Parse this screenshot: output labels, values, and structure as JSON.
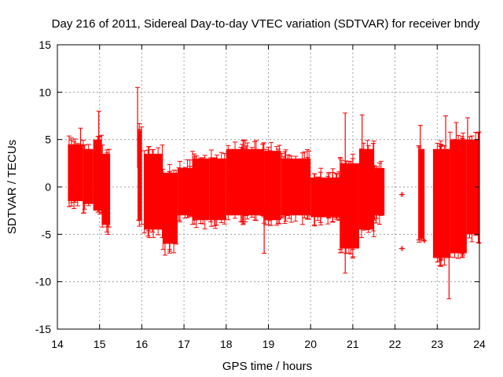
{
  "chart_data": {
    "type": "scatter",
    "title": "Day 216 of 2011, Sidereal Day-to-day VTEC variation (SDTVAR) for receiver bndy",
    "xlabel": "GPS time / hours",
    "ylabel": "SDTVAR / TECUs",
    "xlim": [
      14,
      24
    ],
    "ylim": [
      -15,
      15
    ],
    "xticks": [
      "14",
      "15",
      "16",
      "17",
      "18",
      "19",
      "20",
      "21",
      "22",
      "23",
      "24"
    ],
    "yticks": [
      "-15",
      "-10",
      "-5",
      "0",
      "5",
      "10",
      "15"
    ],
    "grid": true,
    "series_color": "#ff0000",
    "series": [
      {
        "name": "SDTVAR",
        "bands": [
          {
            "x": [
              14.25,
              14.6
            ],
            "low": -1.5,
            "high": 4.5
          },
          {
            "x": [
              14.6,
              14.85
            ],
            "low": -1.8,
            "high": 4.0
          },
          {
            "x": [
              14.85,
              15.05
            ],
            "low": -2.5,
            "high": 5.0
          },
          {
            "x": [
              15.05,
              15.25
            ],
            "low": -4.0,
            "high": 3.5
          },
          {
            "x": [
              15.9,
              16.0
            ],
            "low": -3.5,
            "high": 6.0
          },
          {
            "x": [
              16.05,
              16.5
            ],
            "low": -4.5,
            "high": 3.5
          },
          {
            "x": [
              16.5,
              16.85
            ],
            "low": -6.0,
            "high": 1.5
          },
          {
            "x": [
              16.85,
              17.2
            ],
            "low": -3.0,
            "high": 2.0
          },
          {
            "x": [
              17.2,
              17.6
            ],
            "low": -3.5,
            "high": 3.0
          },
          {
            "x": [
              17.6,
              18.0
            ],
            "low": -3.5,
            "high": 3.0
          },
          {
            "x": [
              18.0,
              18.9
            ],
            "low": -3.0,
            "high": 4.0
          },
          {
            "x": [
              18.9,
              19.3
            ],
            "low": -3.5,
            "high": 3.8
          },
          {
            "x": [
              19.3,
              20.0
            ],
            "low": -3.0,
            "high": 3.0
          },
          {
            "x": [
              20.0,
              20.7
            ],
            "low": -3.2,
            "high": 1.0
          },
          {
            "x": [
              20.7,
              21.15
            ],
            "low": -6.5,
            "high": 2.5
          },
          {
            "x": [
              21.15,
              21.5
            ],
            "low": -4.5,
            "high": 4.0
          },
          {
            "x": [
              21.5,
              21.75
            ],
            "low": -3.0,
            "high": 2.0
          },
          {
            "x": [
              22.55,
              22.7
            ],
            "low": -5.5,
            "high": 4.0
          },
          {
            "x": [
              22.9,
              23.3
            ],
            "low": -7.5,
            "high": 4.0
          },
          {
            "x": [
              23.3,
              23.7
            ],
            "low": -7.0,
            "high": 5.0
          },
          {
            "x": [
              23.7,
              24.0
            ],
            "low": -5.0,
            "high": 5.0
          }
        ],
        "spikes": [
          [
            14.98,
            8.0
          ],
          [
            14.55,
            6.2
          ],
          [
            15.9,
            10.5
          ],
          [
            15.92,
            -3.5
          ],
          [
            16.55,
            -7.2
          ],
          [
            18.9,
            -7.0
          ],
          [
            20.82,
            7.8
          ],
          [
            20.82,
            -9.1
          ],
          [
            21.0,
            -7.5
          ],
          [
            21.22,
            7.6
          ],
          [
            23.2,
            7.5
          ],
          [
            23.28,
            -11.8
          ],
          [
            23.72,
            7.3
          ],
          [
            23.45,
            6.8
          ],
          [
            22.6,
            6.5
          ],
          [
            23.05,
            -7.8
          ],
          [
            21.55,
            -3.8
          ],
          [
            15.2,
            -5.0
          ]
        ],
        "points": [
          [
            22.15,
            -0.8
          ],
          [
            22.18,
            -0.8
          ],
          [
            22.15,
            -6.5
          ],
          [
            22.18,
            -6.5
          ],
          [
            22.62,
            -5.6
          ],
          [
            22.68,
            -5.6
          ],
          [
            22.7,
            -5.7
          ]
        ]
      }
    ]
  }
}
